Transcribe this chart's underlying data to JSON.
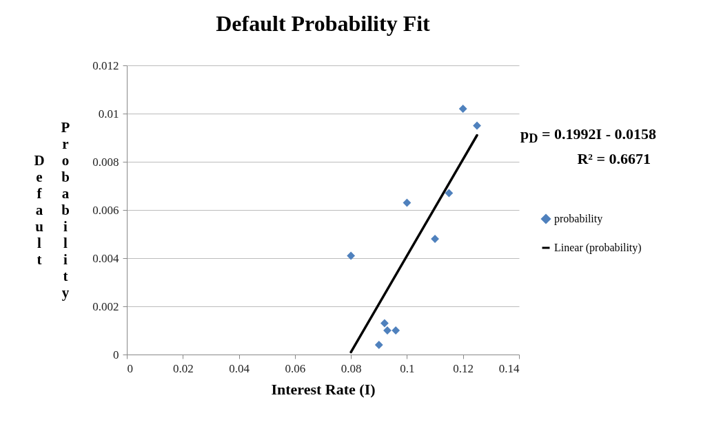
{
  "chart_data": {
    "type": "scatter",
    "title": "Default Probability Fit",
    "xlabel": "Interest Rate (I)",
    "ylabel": "Default Probability",
    "series": [
      {
        "name": "probability",
        "color": "#4f81bd",
        "marker": "diamond",
        "x": [
          0.08,
          0.09,
          0.092,
          0.093,
          0.096,
          0.1,
          0.11,
          0.115,
          0.12,
          0.125
        ],
        "values": [
          0.0041,
          0.0004,
          0.0013,
          0.001,
          0.001,
          0.0063,
          0.0048,
          0.0067,
          0.0102,
          0.0095
        ]
      },
      {
        "name": "Linear (probability)",
        "type": "line",
        "marker": "none",
        "color": "#000000",
        "x": [
          0.08,
          0.125
        ],
        "values": [
          0.0001,
          0.0091
        ]
      }
    ],
    "xlim": [
      0,
      0.14
    ],
    "xticks": [
      0,
      0.02,
      0.04,
      0.06,
      0.08,
      0.1,
      0.12,
      0.14
    ],
    "ylim": [
      0,
      0.012
    ],
    "yticks": [
      0,
      0.002,
      0.004,
      0.006,
      0.008,
      0.01,
      0.012
    ],
    "grid": "y",
    "legend": "right",
    "annotations": [
      "p$_{D}$ = 0.1992I - 0.0158",
      "R² = 0.6671"
    ]
  }
}
